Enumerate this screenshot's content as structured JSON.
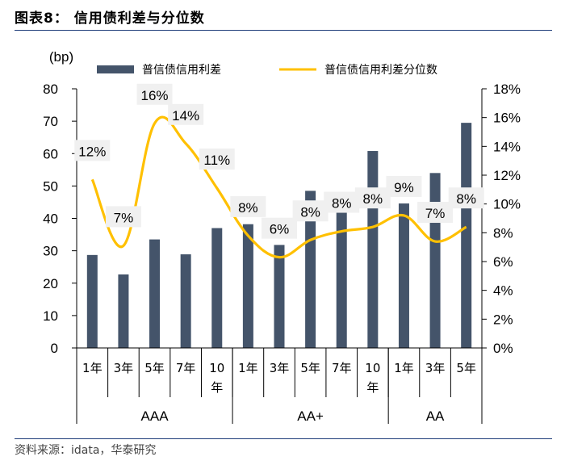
{
  "figure": {
    "title": "图表8：  信用债利差与分位数",
    "source": "资料来源：idata，华泰研究"
  },
  "colors": {
    "bar": "#44546a",
    "line": "#ffc000",
    "rule": "#1f3d7a",
    "label_bg": "#f0f0f0"
  },
  "chart_data": {
    "type": "bar+line",
    "unit_label": "(bp)",
    "left_axis": {
      "min": 0,
      "max": 80,
      "step": 10,
      "ticks": [
        "0",
        "10",
        "20",
        "30",
        "40",
        "50",
        "60",
        "70",
        "80"
      ]
    },
    "right_axis": {
      "min": 0,
      "max": 18,
      "step": 2,
      "ticks": [
        "0%",
        "2%",
        "4%",
        "6%",
        "8%",
        "10%",
        "12%",
        "14%",
        "16%",
        "18%"
      ]
    },
    "categories": [
      {
        "top": "1年",
        "bottom": ""
      },
      {
        "top": "3年",
        "bottom": ""
      },
      {
        "top": "5年",
        "bottom": ""
      },
      {
        "top": "7年",
        "bottom": ""
      },
      {
        "top": "10",
        "bottom": "年"
      },
      {
        "top": "1年",
        "bottom": ""
      },
      {
        "top": "3年",
        "bottom": ""
      },
      {
        "top": "5年",
        "bottom": ""
      },
      {
        "top": "7年",
        "bottom": ""
      },
      {
        "top": "10",
        "bottom": "年"
      },
      {
        "top": "1年",
        "bottom": ""
      },
      {
        "top": "3年",
        "bottom": ""
      },
      {
        "top": "5年",
        "bottom": ""
      }
    ],
    "groups": [
      {
        "label": "AAA",
        "count": 5
      },
      {
        "label": "AA+",
        "count": 5
      },
      {
        "label": "AA",
        "count": 3
      }
    ],
    "series": [
      {
        "name": "普信债信用利差",
        "type": "bar",
        "axis": "left",
        "values": [
          28.7,
          22.7,
          33.5,
          28.9,
          37.0,
          38.2,
          31.8,
          48.5,
          47.8,
          60.8,
          44.6,
          54.0,
          69.5
        ]
      },
      {
        "name": "普信债信用利差分位数",
        "type": "line",
        "axis": "right",
        "values": [
          11.7,
          7.1,
          15.6,
          14.2,
          11.1,
          7.8,
          6.3,
          7.5,
          8.1,
          8.4,
          9.2,
          7.4,
          8.4
        ],
        "labels": [
          "12%",
          "7%",
          "16%",
          "14%",
          "11%",
          "8%",
          "6%",
          "8%",
          "8%",
          "8%",
          "9%",
          "7%",
          "8%"
        ]
      }
    ],
    "legend": {
      "position": "top"
    }
  }
}
